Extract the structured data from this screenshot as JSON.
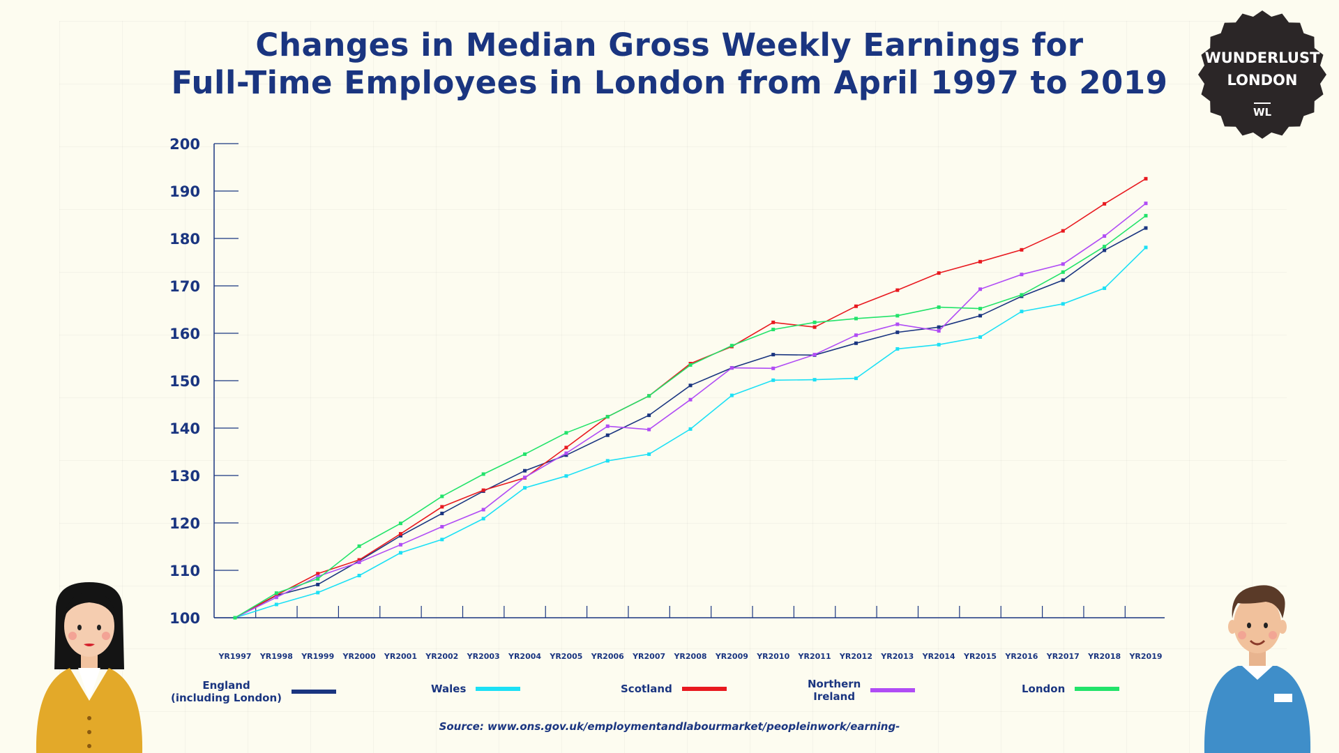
{
  "title_line1": "Changes in Median Gross Weekly Earnings for",
  "title_line2": "Full-Time Employees in London from April 1997 to 2019",
  "badge": {
    "line1": "WUNDERLUST",
    "line2": "LONDON",
    "mark": "WL"
  },
  "source": "Source: www.ons.gov.uk/employmentandlabourmarket/peopleinwork/earning-",
  "colors": {
    "title": "#1a3580",
    "England": "#1a3580",
    "Wales": "#1ce0f5",
    "Scotland": "#e8191f",
    "Northern Ireland": "#b04cf5",
    "London": "#22e36a"
  },
  "chart_data": {
    "type": "line",
    "title": "Changes in Median Gross Weekly Earnings for Full-Time Employees in London from April 1997 to 2019",
    "xlabel": "",
    "ylabel": "",
    "ylim": [
      100,
      200
    ],
    "yticks": [
      100,
      110,
      120,
      130,
      140,
      150,
      160,
      170,
      180,
      190,
      200
    ],
    "grid": false,
    "legend_position": "bottom",
    "categories": [
      "YR1997",
      "YR1998",
      "YR1999",
      "YR2000",
      "YR2001",
      "YR2002",
      "YR2003",
      "YR2004",
      "YR2005",
      "YR2006",
      "YR2007",
      "YR2008",
      "YR2009",
      "YR2010",
      "YR2011",
      "YR2012",
      "YR2013",
      "YR2014",
      "YR2015",
      "YR2016",
      "YR2017",
      "YR2018",
      "YR2019"
    ],
    "series": [
      {
        "name": "England\n(including London)",
        "values": [
          100,
          104.7,
          107,
          112,
          117.3,
          122,
          126.7,
          131,
          134.3,
          138.5,
          142.7,
          149,
          152.7,
          155.5,
          155.4,
          157.9,
          160.2,
          161.3,
          163.7,
          167.8,
          171.2,
          177.5,
          182.2
        ]
      },
      {
        "name": "Wales",
        "values": [
          100,
          102.8,
          105.3,
          108.9,
          113.7,
          116.5,
          120.9,
          127.4,
          129.9,
          133.1,
          134.5,
          139.8,
          146.9,
          150.1,
          150.2,
          150.5,
          156.7,
          157.6,
          159.2,
          164.6,
          166.2,
          169.5,
          178.1
        ]
      },
      {
        "name": "Scotland",
        "values": [
          100,
          104.8,
          109.3,
          112.2,
          117.7,
          123.4,
          126.9,
          129.5,
          135.9,
          142.4,
          146.8,
          153.6,
          157.2,
          162.3,
          161.3,
          165.7,
          169.1,
          172.7,
          175.1,
          177.6,
          181.6,
          187.3,
          192.6
        ]
      },
      {
        "name": "Northern\nIreland",
        "values": [
          100,
          104.3,
          108.7,
          111.7,
          115.4,
          119.2,
          122.8,
          129.6,
          134.7,
          140.4,
          139.7,
          146,
          152.7,
          152.6,
          155.5,
          159.6,
          161.9,
          160.5,
          169.3,
          172.4,
          174.6,
          180.5,
          187.4
        ]
      },
      {
        "name": "London",
        "values": [
          100,
          105.2,
          108.2,
          115.1,
          119.9,
          125.6,
          130.3,
          134.5,
          139,
          142.4,
          146.8,
          153.3,
          157.4,
          160.8,
          162.3,
          163.1,
          163.7,
          165.5,
          165.2,
          168.1,
          172.9,
          178.3,
          184.8
        ]
      }
    ]
  }
}
